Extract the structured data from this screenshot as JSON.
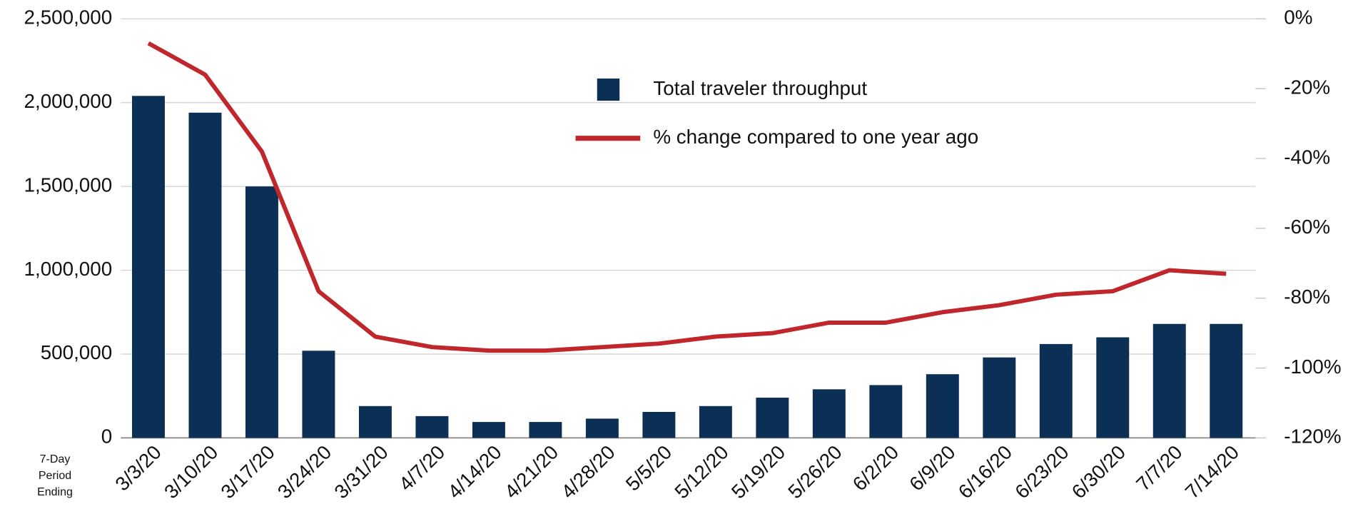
{
  "chart_data": {
    "type": "bar_line",
    "x_label": "7-Day Period Ending",
    "categories": [
      "3/3/20",
      "3/10/20",
      "3/17/20",
      "3/24/20",
      "3/31/20",
      "4/7/20",
      "4/14/20",
      "4/21/20",
      "4/28/20",
      "5/5/20",
      "5/12/20",
      "5/19/20",
      "5/26/20",
      "6/2/20",
      "6/9/20",
      "6/16/20",
      "6/23/20",
      "6/30/20",
      "7/7/20",
      "7/14/20"
    ],
    "series": [
      {
        "name": "Total traveler throughput",
        "type": "bar",
        "color": "#0b2f55",
        "values": [
          2040000,
          1940000,
          1500000,
          520000,
          190000,
          130000,
          95000,
          95000,
          115000,
          155000,
          190000,
          240000,
          290000,
          315000,
          380000,
          480000,
          560000,
          600000,
          680000,
          680000
        ]
      },
      {
        "name": "% change compared to one year ago",
        "type": "line",
        "axis": "y2",
        "color": "#c0272d",
        "values": [
          -7,
          -16,
          -38,
          -78,
          -91,
          -94,
          -95,
          -95,
          -94,
          -93,
          -91,
          -90,
          -87,
          -87,
          -84,
          -82,
          -79,
          -78,
          -72,
          -73
        ]
      }
    ],
    "ylim": [
      0,
      2500000
    ],
    "yticks": [
      0,
      {
        "value": 500000,
        "label": "500,000"
      },
      {
        "value": 1000000,
        "label": "1,000,000"
      },
      {
        "value": 1500000,
        "label": "1,500,000"
      },
      {
        "value": 2000000,
        "label": "2,000,000"
      },
      {
        "value": 2500000,
        "label": "2,500,000"
      }
    ],
    "y2lim": [
      -120,
      0
    ],
    "y2ticks": [
      {
        "value": -120,
        "label": "-120%"
      },
      {
        "value": -100,
        "label": "-100%"
      },
      {
        "value": -80,
        "label": "-80%"
      },
      {
        "value": -60,
        "label": "-60%"
      },
      {
        "value": -40,
        "label": "-40%"
      },
      {
        "value": -20,
        "label": "-20%"
      },
      {
        "value": 0,
        "label": "0%"
      }
    ],
    "y2_color": "#c0272d",
    "grid": true
  }
}
